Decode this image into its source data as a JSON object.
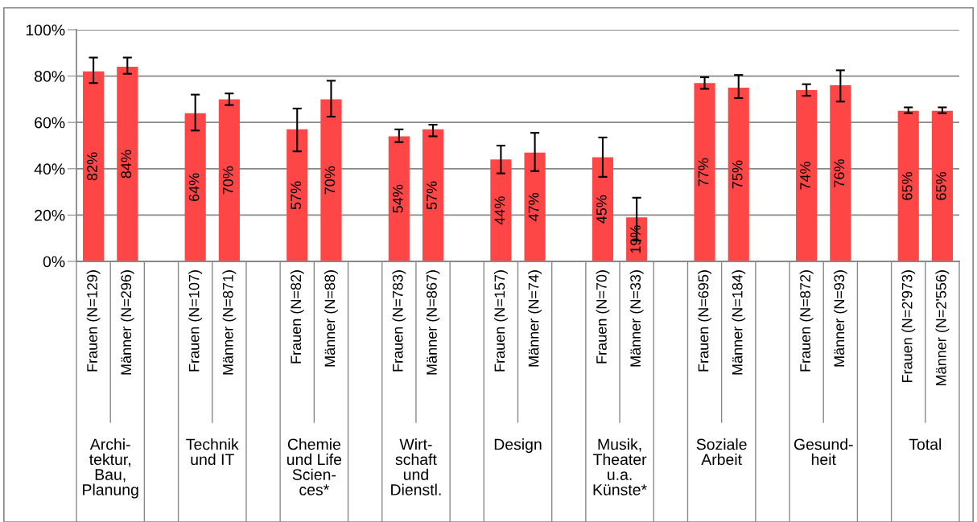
{
  "chart_data": {
    "type": "bar",
    "categories": [
      "Frauen (N=129)",
      "Männer (N=296)",
      null,
      "Frauen (N=107)",
      "Männer (N=871)",
      null,
      "Frauen (N=82)",
      "Männer (N=88)",
      null,
      "Frauen (N=783)",
      "Männer (N=867)",
      null,
      "Frauen (N=157)",
      "Männer (N=74)",
      null,
      "Frauen (N=70)",
      "Männer (N=33)",
      null,
      "Frauen (N=695)",
      "Männer (N=184)",
      null,
      "Frauen (N=872)",
      "Männer (N=93)",
      null,
      "Frauen (N=2'973)",
      "Männer (N=2'556)"
    ],
    "values": [
      82,
      84,
      null,
      64,
      70,
      null,
      57,
      70,
      null,
      54,
      57,
      null,
      44,
      47,
      null,
      45,
      19,
      null,
      77,
      75,
      null,
      74,
      76,
      null,
      65,
      65
    ],
    "errors": [
      [
        77,
        88
      ],
      [
        81,
        88
      ],
      null,
      [
        56.5,
        72
      ],
      [
        67.5,
        72.5
      ],
      null,
      [
        47.5,
        66
      ],
      [
        62.5,
        78
      ],
      null,
      [
        51.5,
        57
      ],
      [
        54,
        59
      ],
      null,
      [
        38,
        50
      ],
      [
        39,
        55.5
      ],
      null,
      [
        36.5,
        53.5
      ],
      [
        9,
        27.5
      ],
      null,
      [
        74.5,
        79.5
      ],
      [
        70.5,
        80.5
      ],
      null,
      [
        71.5,
        76.5
      ],
      [
        69,
        82.5
      ],
      null,
      [
        64,
        66.5
      ],
      [
        64,
        66.5
      ]
    ],
    "color": "#fe4646",
    "value_labels": [
      "82%",
      "84%",
      null,
      "64%",
      "70%",
      null,
      "57%",
      "70%",
      null,
      "54%",
      "57%",
      null,
      "44%",
      "47%",
      null,
      "45%",
      "19%",
      null,
      "77%",
      "75%",
      null,
      "74%",
      "76%",
      null,
      "65%",
      "65%"
    ],
    "ylim": [
      0,
      100
    ],
    "yticks": [
      {
        "value": 0,
        "label": "0%"
      },
      {
        "value": 20,
        "label": "20%"
      },
      {
        "value": 40,
        "label": "40%"
      },
      {
        "value": 60,
        "label": "60%"
      },
      {
        "value": 80,
        "label": "80%"
      },
      {
        "value": 100,
        "label": "100%"
      }
    ],
    "grid": "y",
    "annotations": [
      "Archi-\ntektur,\nBau,\nPlanung",
      "Technik\nund IT",
      "Chemie\nund Life\nScien-\nces*",
      "Wirt-\nschaft\nund\nDienstl.",
      "Design",
      "Musik,\nTheater\nu.a.\nKünste*",
      "Soziale\nArbeit",
      "Gesund-\nheit",
      "Total"
    ]
  }
}
